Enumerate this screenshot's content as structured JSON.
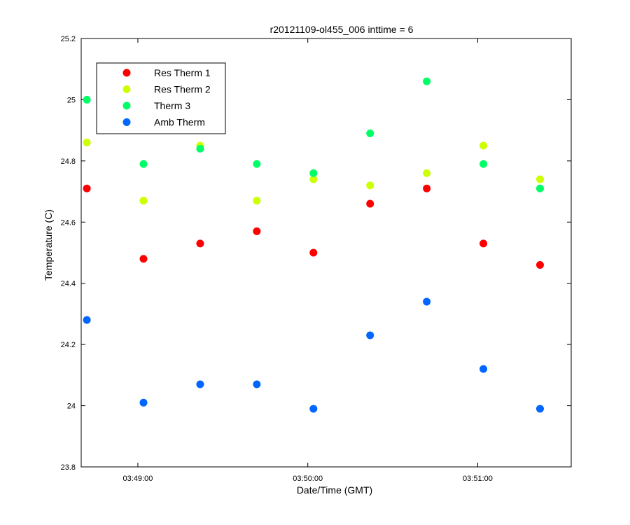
{
  "chart_data": {
    "type": "scatter",
    "title": "r20121109-ol455_006 inttime = 6",
    "xlabel": "Date/Time (GMT)",
    "ylabel": "Temperature (C)",
    "x": [
      "03:48:42",
      "03:49:02",
      "03:49:22",
      "03:49:42",
      "03:50:02",
      "03:50:22",
      "03:50:42",
      "03:51:02",
      "03:51:22"
    ],
    "xlim": [
      "03:48:40",
      "03:51:33"
    ],
    "xticks": [
      "03:49:00",
      "03:50:00",
      "03:51:00"
    ],
    "ylim": [
      23.8,
      25.2
    ],
    "yticks": [
      "23.8",
      "24",
      "24.2",
      "24.4",
      "24.6",
      "24.8",
      "25",
      "25.2"
    ],
    "legend_position": "top-left",
    "grid": false,
    "series": [
      {
        "name": "Res Therm 1",
        "color": "#ff0000",
        "values": [
          24.71,
          24.48,
          24.53,
          24.57,
          24.5,
          24.66,
          24.71,
          24.53,
          24.46
        ]
      },
      {
        "name": "Res Therm 2",
        "color": "#ccff00",
        "values": [
          24.86,
          24.67,
          24.85,
          24.67,
          24.74,
          24.72,
          24.76,
          24.85,
          24.74
        ]
      },
      {
        "name": "Therm 3",
        "color": "#00ff66",
        "values": [
          25.0,
          24.79,
          24.84,
          24.79,
          24.76,
          24.89,
          25.06,
          24.79,
          24.71
        ]
      },
      {
        "name": "Amb Therm",
        "color": "#0066ff",
        "values": [
          24.28,
          24.01,
          24.07,
          24.07,
          23.99,
          24.23,
          24.34,
          24.12,
          23.99
        ]
      }
    ]
  }
}
